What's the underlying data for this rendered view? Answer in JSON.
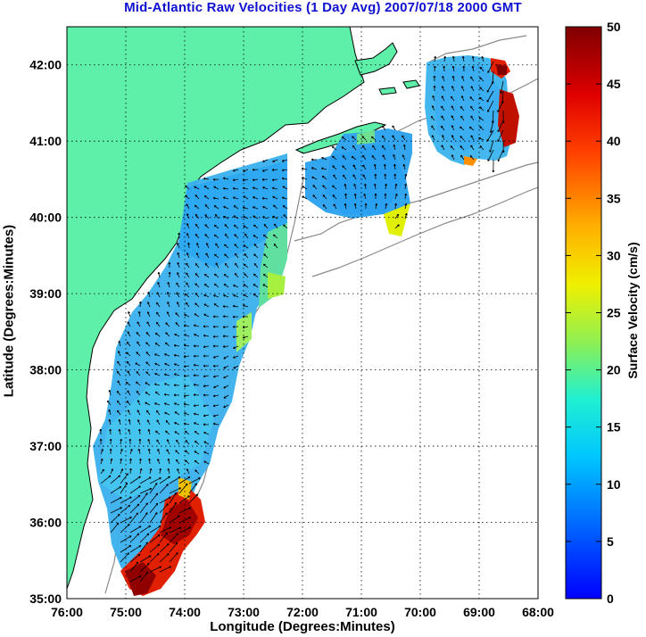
{
  "title": "Mid-Atlantic Raw Velocities (1 Day Avg) 2007/07/18 2000 GMT",
  "xlabel": "Longitude (Degrees:Minutes)",
  "ylabel": "Latitude (Degrees:Minutes)",
  "colorbar": {
    "label": "Surface Velocity (cm/s)",
    "min": 0,
    "max": 50,
    "ticks": [
      "0",
      "5",
      "10",
      "15",
      "20",
      "25",
      "30",
      "35",
      "40",
      "45",
      "50"
    ]
  },
  "map": {
    "lon_ticks": [
      "76:00",
      "75:00",
      "74:00",
      "73:00",
      "72:00",
      "71:00",
      "70:00",
      "69:00",
      "68:00"
    ],
    "lat_ticks": [
      "35:00",
      "36:00",
      "37:00",
      "38:00",
      "39:00",
      "40:00",
      "41:00",
      "42:00"
    ],
    "lon_range": [
      -76,
      -68
    ],
    "lat_range": [
      35,
      42.5
    ],
    "land_color": "#5ef0a8",
    "coast_color": "#000000",
    "grid_style": "dotted"
  }
}
